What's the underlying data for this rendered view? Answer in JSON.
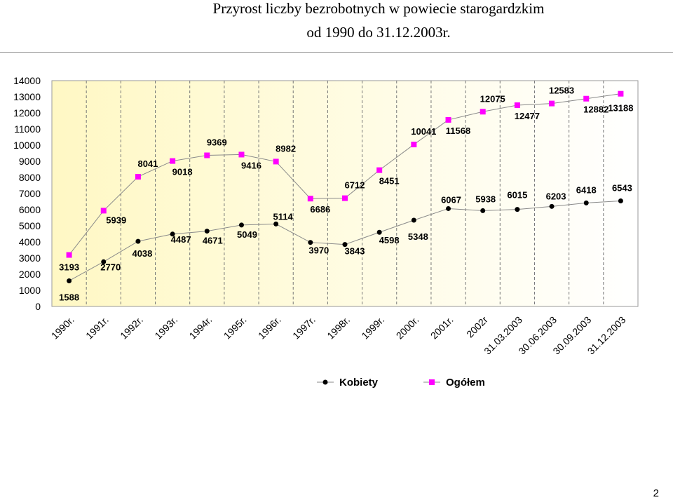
{
  "header": {
    "title_line1": "Przyrost liczby bezrobotnych w powiecie starogardzkim",
    "title_line2": "od 1990 do 31.12.2003r."
  },
  "chart_data": {
    "type": "line",
    "title": "Przyrost liczby bezrobotnych w powiecie starogardzkim od 1990 do 31.12.2003r.",
    "categories": [
      "1990r.",
      "1991r.",
      "1992r.",
      "1993r.",
      "1994r.",
      "1995r.",
      "1996r.",
      "1997r.",
      "1998r.",
      "1999r.",
      "2000r.",
      "2001r.",
      "2002r",
      "31.03.2003",
      "30.06.2003",
      "30.09.2003",
      "31.12.2003"
    ],
    "series": [
      {
        "name": "Kobiety",
        "color": "#000000",
        "marker": "circle",
        "values": [
          1588,
          2770,
          4038,
          4487,
          4671,
          5049,
          5114,
          3970,
          3843,
          4598,
          5348,
          6067,
          5938,
          6015,
          6203,
          6418,
          6543
        ]
      },
      {
        "name": "Ogółem",
        "color": "#ff00ff",
        "marker": "square",
        "values": [
          3193,
          5939,
          8041,
          9018,
          9369,
          9416,
          8982,
          6686,
          6712,
          8451,
          10041,
          11568,
          12075,
          12477,
          12583,
          12882,
          13188
        ]
      }
    ],
    "ylim": [
      0,
      14000
    ],
    "yticks": [
      0,
      1000,
      2000,
      3000,
      4000,
      5000,
      6000,
      7000,
      8000,
      9000,
      10000,
      11000,
      12000,
      13000,
      14000
    ],
    "xlabel": "",
    "ylabel": "",
    "grid": "vertical dashed",
    "legend_position": "bottom"
  },
  "legend": {
    "kobiety": "Kobiety",
    "ogolem": "Ogółem"
  },
  "page": {
    "number": "2"
  }
}
